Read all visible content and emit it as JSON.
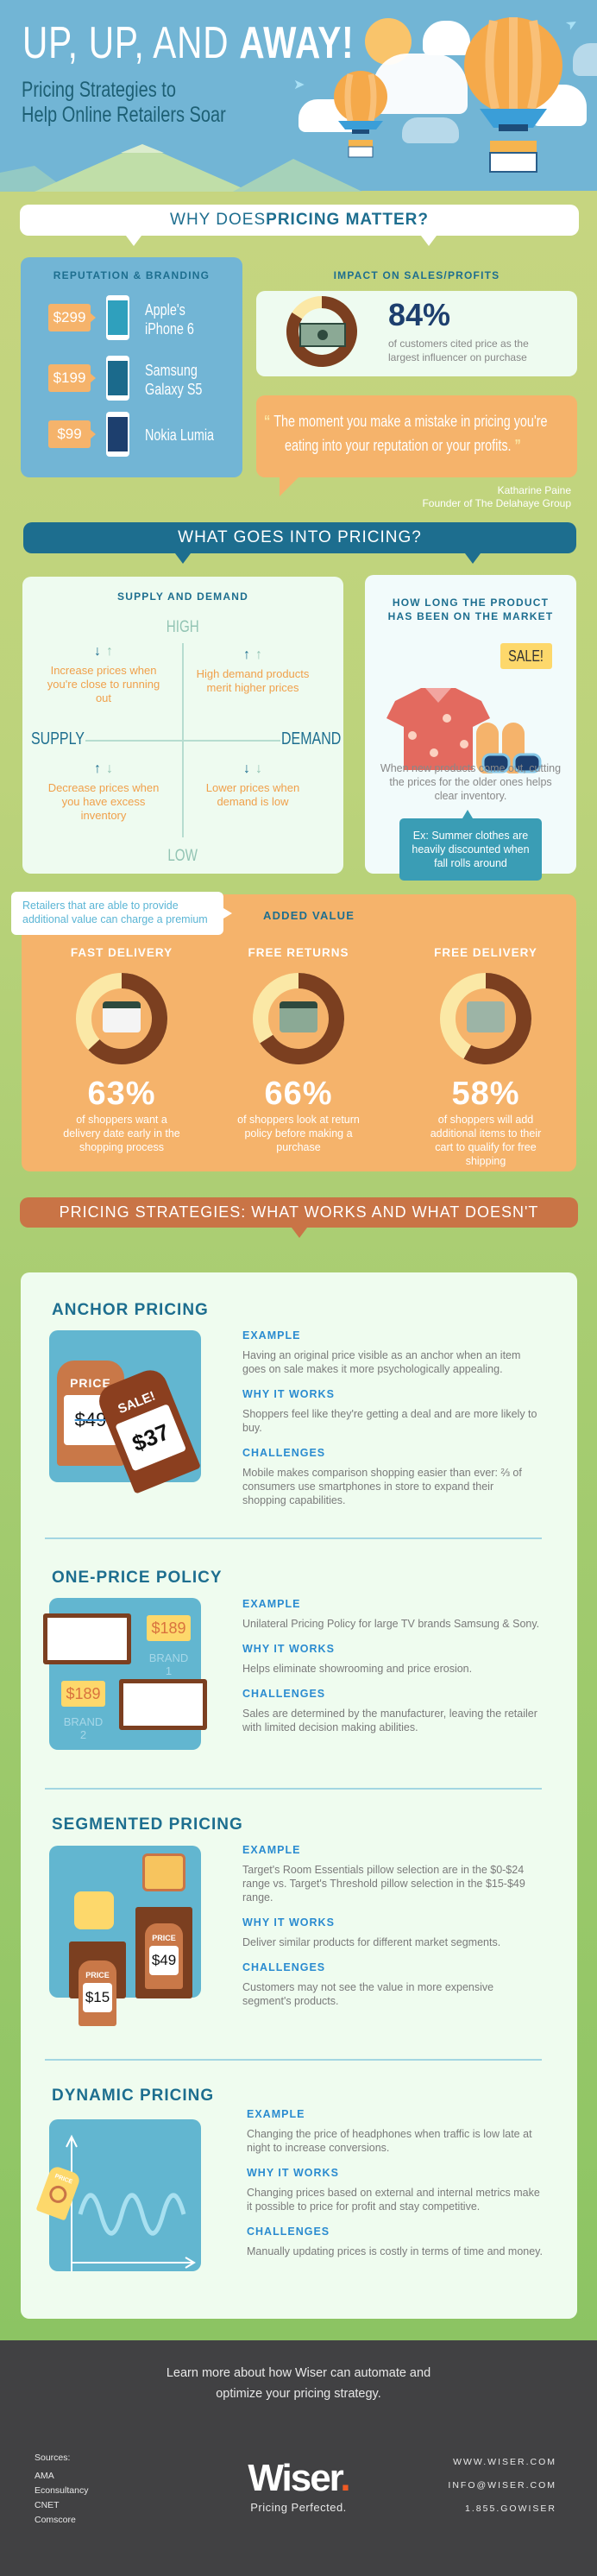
{
  "hero": {
    "title_light": "UP, UP, AND ",
    "title_bold": "AWAY!",
    "subtitle_line1": "Pricing Strategies to",
    "subtitle_line2": "Help Online Retailers Soar"
  },
  "why": {
    "heading_light": "WHY DOES ",
    "heading_bold": "PRICING MATTER?"
  },
  "reputation": {
    "heading": "REPUTATION & BRANDING",
    "items": [
      {
        "price": "$299",
        "line1": "Apple's",
        "line2": "iPhone 6"
      },
      {
        "price": "$199",
        "line1": "Samsung",
        "line2": "Galaxy S5"
      },
      {
        "price": "$99",
        "line1": "Nokia Lumia",
        "line2": ""
      }
    ]
  },
  "impact": {
    "heading": "IMPACT ON SALES/PROFITS",
    "percent": "84%",
    "value": 84,
    "text_line1": "of customers cited price as the",
    "text_line2": "largest influencer on purchase"
  },
  "quote": {
    "line1": "The moment you make a mistake in pricing you're",
    "line2": "eating into your reputation or your profits.",
    "author": "Katharine Paine",
    "author_title": "Founder of The Delahaye Group"
  },
  "what_goes": {
    "heading": "WHAT GOES INTO PRICING?"
  },
  "supply_demand": {
    "heading": "SUPPLY AND DEMAND",
    "high": "HIGH",
    "low": "LOW",
    "supply": "SUPPLY",
    "demand": "DEMAND",
    "quadrants": [
      {
        "text": "Increase prices when you're close to running out",
        "arrow1": "↓",
        "arrow2": "↑"
      },
      {
        "text": "High demand products merit higher prices",
        "arrow1": "↑",
        "arrow2": "↑"
      },
      {
        "text": "Decrease prices when you have excess inventory",
        "arrow1": "↑",
        "arrow2": "↓"
      },
      {
        "text": "Lower prices when demand is low",
        "arrow1": "↓",
        "arrow2": "↓"
      }
    ]
  },
  "market": {
    "heading_line1": "HOW LONG THE PRODUCT",
    "heading_line2": "HAS BEEN ON THE MARKET",
    "sale_label": "SALE!",
    "text": "When new products come out, cutting the prices for the older ones helps clear inventory.",
    "example": "Ex: Summer clothes are heavily discounted when fall rolls around"
  },
  "added_value": {
    "callout": "Retailers that are able to provide additional value can charge a premium",
    "heading": "ADDED VALUE",
    "items": [
      {
        "title": "FAST DELIVERY",
        "percent": "63%",
        "value": 63,
        "icon": "calendar-icon",
        "text": "of shoppers want a delivery date early in the shopping process"
      },
      {
        "title": "FREE RETURNS",
        "percent": "66%",
        "value": 66,
        "icon": "money-return-icon",
        "text": "of shoppers look at return policy before making a purchase"
      },
      {
        "title": "FREE DELIVERY",
        "percent": "58%",
        "value": 58,
        "icon": "truck-icon",
        "text": "of shoppers will add additional items to their cart to qualify for free shipping"
      }
    ]
  },
  "strategies": {
    "heading": "PRICING STRATEGIES: WHAT WORKS AND WHAT DOESN'T",
    "example_label": "EXAMPLE",
    "why_label": "WHY IT WORKS",
    "challenges_label": "CHALLENGES",
    "items": [
      {
        "title": "ANCHOR PRICING",
        "example": "Having an original price visible as an anchor when an item goes on sale makes it more psychologically appealing.",
        "why": "Shoppers feel like they're getting a deal and are more likely to buy.",
        "challenges": "Mobile makes comparison shopping easier than ever: ⅔ of consumers use smartphones in store to expand their shopping capabilities.",
        "illustration": {
          "tag1_label": "PRICE",
          "tag1_price": "$49",
          "tag2_label": "SALE!",
          "tag2_price": "$37"
        }
      },
      {
        "title": "ONE-PRICE POLICY",
        "example": "Unilateral Pricing Policy for large TV brands Samsung & Sony.",
        "why": "Helps eliminate showrooming and price erosion.",
        "challenges": "Sales are determined by the manufacturer, leaving the retailer with limited decision making abilities.",
        "illustration": {
          "price1": "$189",
          "brand1": "BRAND 1",
          "price2": "$189",
          "brand2": "BRAND 2"
        }
      },
      {
        "title": "SEGMENTED PRICING",
        "example": "Target's Room Essentials pillow selection are in the $0-$24 range vs. Target's Threshold pillow selection in the $15-$49 range.",
        "why": "Deliver similar products for different market segments.",
        "challenges": "Customers may not see the value in more expensive segment's products.",
        "illustration": {
          "tag1_label": "PRICE",
          "tag1_price": "$49",
          "tag2_label": "PRICE",
          "tag2_price": "$15"
        }
      },
      {
        "title": "DYNAMIC PRICING",
        "example": "Changing the price of headphones when traffic is low late at night to increase conversions.",
        "why": "Changing prices based on external and internal metrics make it possible to price for profit and stay competitive.",
        "challenges": "Manually updating prices is costly in terms of time and money.",
        "illustration": {
          "tag_label": "PRICE"
        }
      }
    ]
  },
  "footer": {
    "cta_line1": "Learn more about how Wiser can automate and",
    "cta_line2": "optimize your pricing strategy.",
    "sources_label": "Sources:",
    "sources": [
      "AMA",
      "Econsultancy",
      "CNET",
      "Comscore"
    ],
    "logo": "Wiser",
    "tagline": "Pricing Perfected.",
    "contacts": [
      "WWW.WISER.COM",
      "INFO@WISER.COM",
      "1.855.GOWISER"
    ]
  },
  "colors": {
    "sky": "#72b5d5",
    "navy": "#1d6e8f",
    "orange": "#f5b36b",
    "brown": "#7b3f20",
    "cream": "#fbe8a6",
    "teal": "#3a9db5",
    "footer": "#414143",
    "logo_dot": "#f15a24"
  }
}
